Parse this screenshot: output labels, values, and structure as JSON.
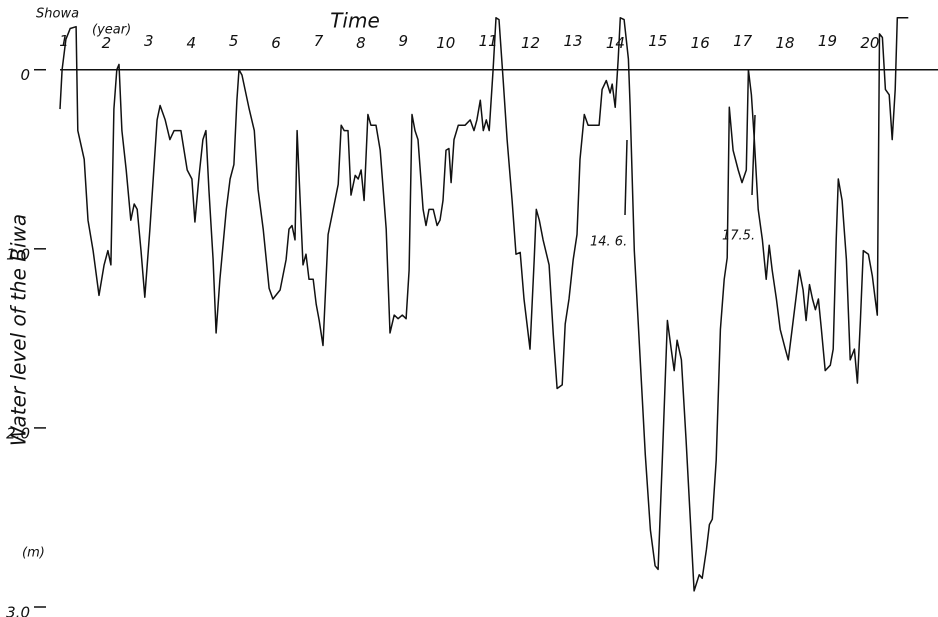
{
  "chart_data": {
    "type": "line",
    "title": "Time",
    "x_label": "Showa",
    "x_unit": "(year)",
    "y_label": "Water level of the Biwa",
    "y_unit": "(m)",
    "annotations": [
      "14. 6.",
      "17.5."
    ],
    "xlim": [
      1,
      21.7
    ],
    "xticks": [
      1,
      2,
      3,
      4,
      5,
      6,
      7,
      8,
      9,
      10,
      11,
      12,
      13,
      14,
      15,
      16,
      17,
      18,
      19,
      20
    ],
    "ylim": [
      3.0,
      -0.3
    ],
    "yticks": [
      0,
      {
        "value": 1,
        "label": "1.0"
      },
      {
        "value": 2,
        "label": "2.0"
      },
      {
        "value": 3,
        "label": "3.0"
      }
    ],
    "color": "#111111",
    "x": [
      1.0,
      1.05,
      1.14,
      1.24,
      1.38,
      1.42,
      1.57,
      1.66,
      1.78,
      1.92,
      2.04,
      2.13,
      2.2,
      2.27,
      2.34,
      2.39,
      2.46,
      2.56,
      2.67,
      2.75,
      2.82,
      2.91,
      3.0,
      3.12,
      3.29,
      3.36,
      3.48,
      3.59,
      3.69,
      3.85,
      4.0,
      4.11,
      4.18,
      4.28,
      4.37,
      4.44,
      4.51,
      4.61,
      4.68,
      4.77,
      4.92,
      5.01,
      5.1,
      5.17,
      5.22,
      5.29,
      5.46,
      5.58,
      5.67,
      5.79,
      5.93,
      6.02,
      6.19,
      6.33,
      6.4,
      6.47,
      6.54,
      6.59,
      6.64,
      6.73,
      6.8,
      6.87,
      6.97,
      7.04,
      7.11,
      7.2,
      7.32,
      7.44,
      7.56,
      7.63,
      7.7,
      7.79,
      7.86,
      7.96,
      8.03,
      8.1,
      8.17,
      8.26,
      8.33,
      8.45,
      8.55,
      8.69,
      8.78,
      8.88,
      8.97,
      9.07,
      9.16,
      9.23,
      9.3,
      9.37,
      9.44,
      9.56,
      9.63,
      9.7,
      9.8,
      9.89,
      9.96,
      10.03,
      10.1,
      10.17,
      10.22,
      10.29,
      10.39,
      10.55,
      10.67,
      10.76,
      10.83,
      10.91,
      10.98,
      11.05,
      11.12,
      11.21,
      11.28,
      11.35,
      11.45,
      11.54,
      11.66,
      11.75,
      11.85,
      11.94,
      12.01,
      12.08,
      12.18,
      12.23,
      12.3,
      12.39,
      12.53,
      12.63,
      12.72,
      12.84,
      12.91,
      13.0,
      13.1,
      13.19,
      13.26,
      13.36,
      13.45,
      13.59,
      13.71,
      13.78,
      13.88,
      13.97,
      14.02,
      14.09,
      14.16,
      14.21,
      14.3,
      14.4,
      14.44,
      14.54,
      14.63,
      14.8,
      14.92,
      15.03,
      15.1,
      15.2,
      15.32,
      15.41,
      15.48,
      15.55,
      15.65,
      15.76,
      15.86,
      15.95,
      16.07,
      16.14,
      16.24,
      16.31,
      16.38,
      16.47,
      16.57,
      16.66,
      16.73,
      16.78,
      16.87,
      16.99,
      17.08,
      17.18,
      17.23,
      17.3,
      17.37,
      17.46,
      17.56,
      17.65,
      17.72,
      17.79,
      17.89,
      17.98,
      18.1,
      18.17,
      18.26,
      18.36,
      18.43,
      18.52,
      18.59,
      18.67,
      18.74,
      18.81,
      18.88,
      18.95,
      19.04,
      19.16,
      19.23,
      19.3,
      19.35,
      19.44,
      19.54,
      19.63,
      19.73,
      19.8,
      19.87,
      19.94,
      20.06,
      20.15,
      20.22,
      20.27,
      20.32,
      20.39,
      20.46,
      20.55,
      20.62,
      20.69,
      20.74,
      21.0
    ],
    "values": [
      0.22,
      0,
      -0.17,
      -0.23,
      -0.24,
      0.34,
      0.5,
      0.84,
      1.01,
      1.26,
      1.09,
      1.01,
      1.09,
      0.22,
      0,
      -0.03,
      0.34,
      0.56,
      0.84,
      0.75,
      0.78,
      1.01,
      1.27,
      0.89,
      0.28,
      0.2,
      0.28,
      0.39,
      0.34,
      0.34,
      0.56,
      0.61,
      0.85,
      0.59,
      0.39,
      0.34,
      0.67,
      1.06,
      1.47,
      1.17,
      0.78,
      0.61,
      0.53,
      0.17,
      0,
      0.03,
      0.22,
      0.34,
      0.67,
      0.89,
      1.22,
      1.28,
      1.23,
      1.06,
      0.89,
      0.87,
      0.95,
      0.34,
      0.61,
      1.09,
      1.03,
      1.17,
      1.17,
      1.31,
      1.4,
      1.54,
      0.92,
      0.78,
      0.64,
      0.31,
      0.34,
      0.34,
      0.7,
      0.59,
      0.61,
      0.56,
      0.73,
      0.25,
      0.31,
      0.31,
      0.45,
      0.89,
      1.47,
      1.37,
      1.39,
      1.37,
      1.39,
      1.12,
      0.25,
      0.34,
      0.39,
      0.78,
      0.87,
      0.78,
      0.78,
      0.87,
      0.84,
      0.73,
      0.45,
      0.44,
      0.63,
      0.39,
      0.31,
      0.31,
      0.28,
      0.34,
      0.28,
      0.17,
      0.34,
      0.28,
      0.34,
      0,
      -0.29,
      -0.28,
      0.06,
      0.39,
      0.73,
      1.03,
      1.02,
      1.28,
      1.42,
      1.56,
      1.06,
      0.78,
      0.84,
      0.95,
      1.09,
      1.48,
      1.78,
      1.76,
      1.42,
      1.28,
      1.06,
      0.92,
      0.5,
      0.25,
      0.31,
      0.31,
      0.31,
      0.11,
      0.06,
      0.13,
      0.08,
      0.21,
      -0.06,
      -0.29,
      -0.28,
      -0.06,
      0.2,
      1.01,
      1.4,
      2.15,
      2.57,
      2.77,
      2.79,
      2.18,
      1.4,
      1.56,
      1.68,
      1.51,
      1.62,
      2.07,
      2.51,
      2.91,
      2.82,
      2.84,
      2.68,
      2.54,
      2.51,
      2.18,
      1.45,
      1.17,
      1.05,
      0.21,
      0.45,
      0.56,
      0.63,
      0.56,
      0,
      0.14,
      0.39,
      0.78,
      0.95,
      1.17,
      0.98,
      1.12,
      1.28,
      1.45,
      1.56,
      1.62,
      1.45,
      1.26,
      1.12,
      1.23,
      1.4,
      1.2,
      1.28,
      1.34,
      1.28,
      1.45,
      1.68,
      1.65,
      1.56,
      0.95,
      0.61,
      0.73,
      1.06,
      1.62,
      1.56,
      1.75,
      1.4,
      1.01,
      1.03,
      1.15,
      1.28,
      1.37,
      -0.2,
      -0.18,
      0.11,
      0.14,
      0.39,
      0.11,
      -0.29,
      -0.29
    ]
  }
}
